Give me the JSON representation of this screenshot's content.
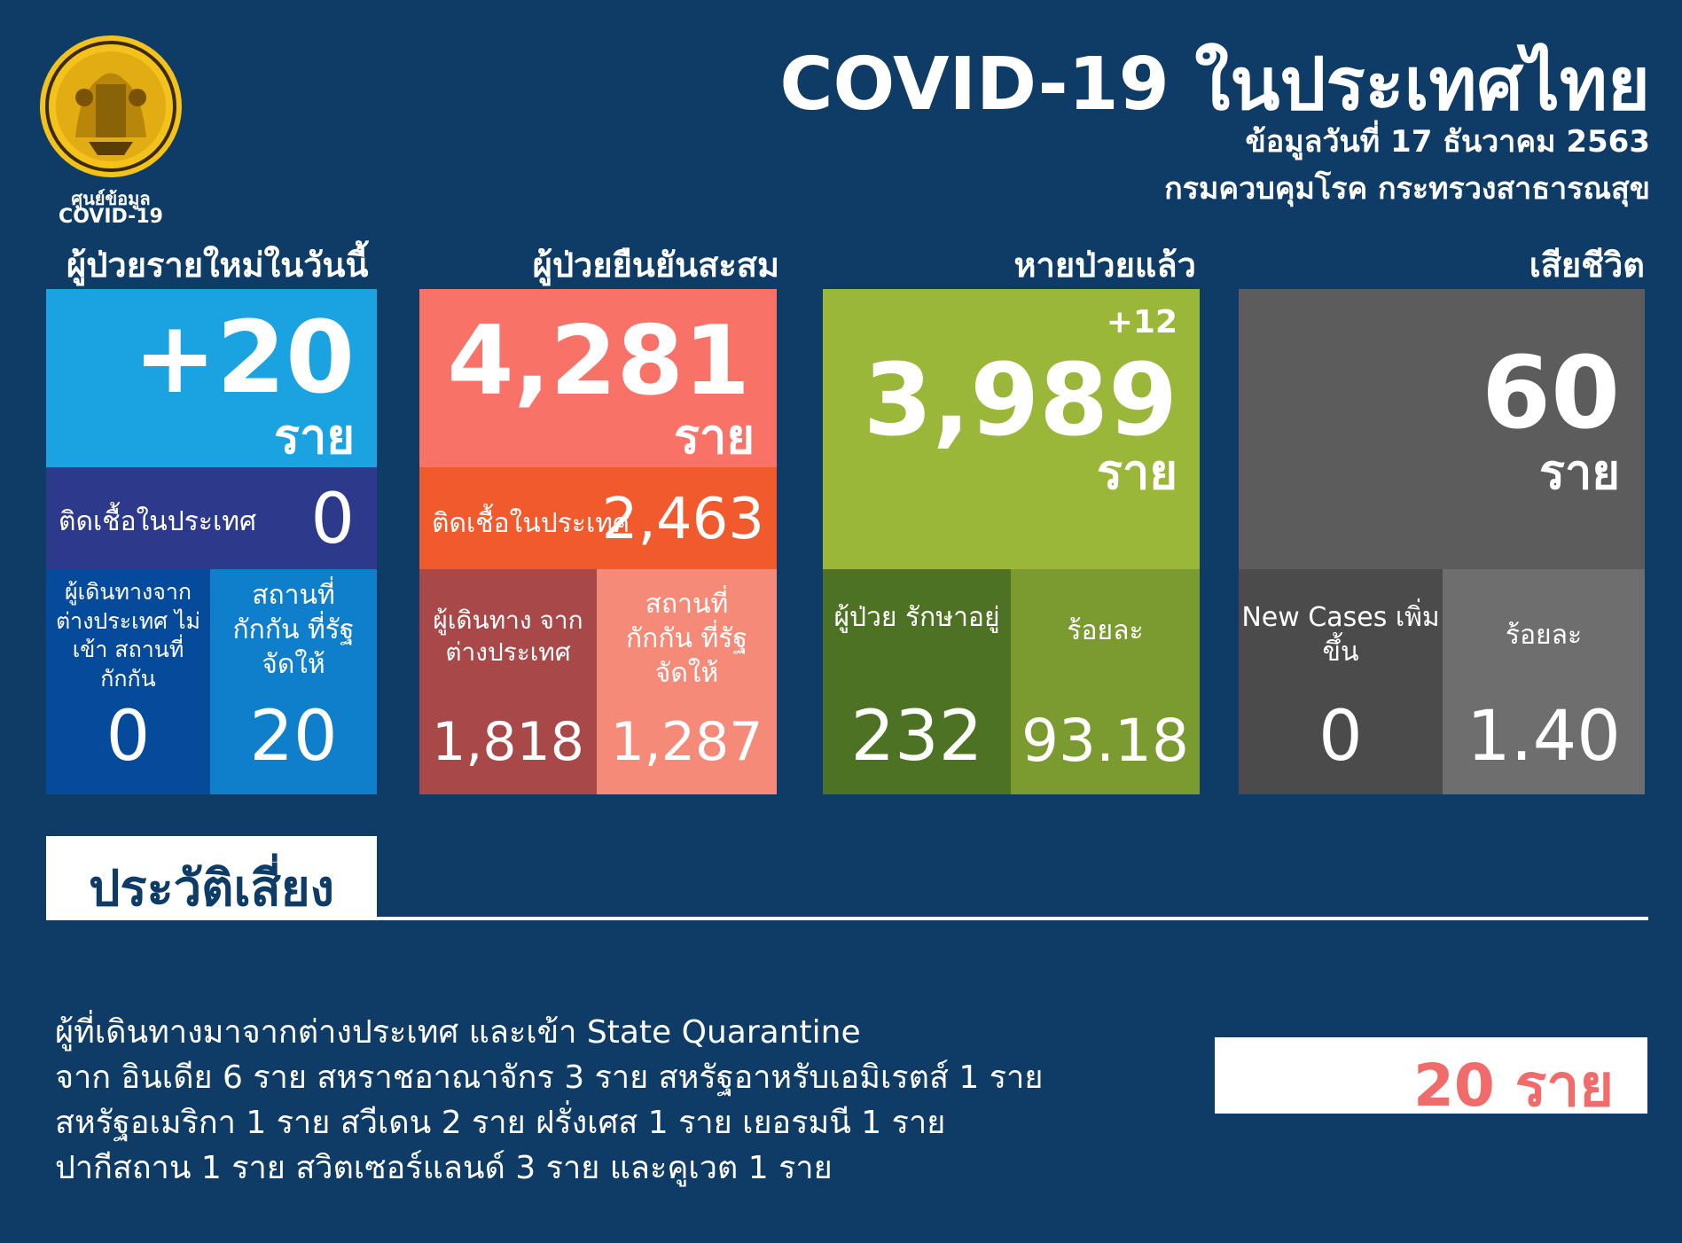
{
  "header": {
    "logo_caption_line1": "ศูนย์ข้อมูล",
    "logo_caption_line2": "COVID-19",
    "title": "COVID-19 ในประเทศไทย",
    "date": "ข้อมูลวันที่ 17 ธันวาคม 2563",
    "department": "กรมควบคุมโรค กระทรวงสาธารณสุข"
  },
  "colors": {
    "background": "#0e3c67",
    "new_cases": "#1aa3e0",
    "confirmed": "#f97268",
    "recovered": "#9bb73a",
    "deaths": "#5c5c5c"
  },
  "new_cases": {
    "caption": "ผู้ป่วยรายใหม่ในวันนี้",
    "value": "+20",
    "unit": "ราย",
    "local_label": "ติดเชื้อในประเทศ",
    "local_value": "0",
    "traveler_label": "ผู้เดินทางจาก ต่างประเทศ ไม่เข้า สถานที่กักกัน",
    "traveler_value": "0",
    "quarantine_label": "สถานที่ กักกัน ที่รัฐจัดให้",
    "quarantine_value": "20"
  },
  "confirmed": {
    "caption": "ผู้ป่วยยืนยันสะสม",
    "value": "4,281",
    "unit": "ราย",
    "local_label": "ติดเชื้อในประเทศ",
    "local_value": "2,463",
    "traveler_label": "ผู้เดินทาง จากต่างประเทศ",
    "traveler_value": "1,818",
    "quarantine_label": "สถานที่ กักกัน ที่รัฐจัดให้",
    "quarantine_value": "1,287"
  },
  "recovered": {
    "caption": "หายป่วยแล้ว",
    "delta": "+12",
    "value": "3,989",
    "unit": "ราย",
    "treating_label": "ผู้ป่วย รักษาอยู่",
    "treating_value": "232",
    "percent_label": "ร้อยละ",
    "percent_value": "93.18"
  },
  "deaths": {
    "caption": "เสียชีวิต",
    "value": "60",
    "unit": "ราย",
    "new_label": "New Cases เพิ่มขึ้น",
    "new_value": "0",
    "percent_label": "ร้อยละ",
    "percent_value": "1.40"
  },
  "risk": {
    "title": "ประวัติเสี่ยง",
    "lines": [
      "ผู้ที่เดินทางมาจากต่างประเทศ และเข้า State Quarantine",
      "จาก อินเดีย 6 ราย สหราชอาณาจักร 3 ราย สหรัฐอาหรับเอมิเรตส์ 1 ราย",
      "สหรัฐอเมริกา 1 ราย สวีเดน 2 ราย ฝรั่งเศส 1 ราย เยอรมนี 1 ราย",
      "ปากีสถาน 1 ราย สวิตเซอร์แลนด์ 3 ราย และคูเวต 1 ราย"
    ],
    "total": "20 ราย"
  }
}
